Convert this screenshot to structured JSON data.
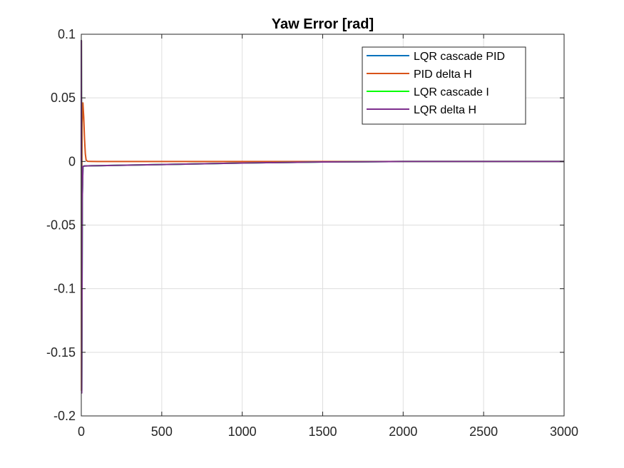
{
  "chart_data": {
    "type": "line",
    "title": "Yaw Error [rad]",
    "xlabel": "",
    "ylabel": "",
    "xlim": [
      0,
      3000
    ],
    "ylim": [
      -0.2,
      0.1
    ],
    "xticks": [
      0,
      500,
      1000,
      1500,
      2000,
      2500,
      3000
    ],
    "yticks": [
      -0.2,
      -0.15,
      -0.1,
      -0.05,
      0,
      0.05,
      0.1
    ],
    "xtick_labels": [
      "0",
      "500",
      "1000",
      "1500",
      "2000",
      "2500",
      "3000"
    ],
    "ytick_labels": [
      "-0.2",
      "-0.15",
      "-0.1",
      "-0.05",
      "0",
      "0.05",
      "0.1"
    ],
    "grid": true,
    "legend_position": "top-right",
    "series": [
      {
        "name": "LQR cascade PID",
        "color": "#0072BD",
        "x": [
          0,
          0.3,
          0.8,
          1.5,
          2.5,
          4,
          6,
          10,
          20,
          100,
          500,
          1000,
          1500,
          2000,
          2500,
          3000
        ],
        "y": [
          0,
          0.095,
          0.05,
          -0.05,
          -0.18,
          -0.12,
          -0.03,
          -0.004,
          -0.0035,
          -0.0033,
          -0.0024,
          -0.0012,
          -0.0004,
          0,
          0,
          0
        ]
      },
      {
        "name": "PID delta H",
        "color": "#D95319",
        "x": [
          0,
          0.5,
          1,
          2,
          5,
          10,
          15,
          20,
          25,
          30,
          40,
          100,
          3000
        ],
        "y": [
          0,
          0.095,
          -0.18,
          -0.05,
          0.03,
          0.046,
          0.035,
          0.018,
          0.006,
          0.001,
          0.0001,
          0,
          0
        ]
      },
      {
        "name": "LQR cascade I",
        "color": "#00FF00",
        "x": [
          0,
          0.3,
          0.8,
          1.5,
          2.5,
          4,
          6,
          10,
          20,
          100,
          500,
          1000,
          1500,
          2000,
          2500,
          3000
        ],
        "y": [
          0,
          0.095,
          0.05,
          -0.05,
          -0.18,
          -0.12,
          -0.03,
          -0.004,
          -0.0035,
          -0.0033,
          -0.0024,
          -0.0012,
          -0.0004,
          0,
          0,
          0
        ]
      },
      {
        "name": "LQR delta H",
        "color": "#7E2F8E",
        "x": [
          0,
          0.3,
          0.8,
          1.5,
          2.5,
          4,
          6,
          10,
          20,
          100,
          500,
          1000,
          1500,
          2000,
          2500,
          3000
        ],
        "y": [
          0,
          0.095,
          0.05,
          -0.05,
          -0.182,
          -0.12,
          -0.03,
          -0.004,
          -0.0035,
          -0.0033,
          -0.0024,
          -0.0012,
          -0.0004,
          0,
          0,
          0
        ]
      }
    ]
  }
}
